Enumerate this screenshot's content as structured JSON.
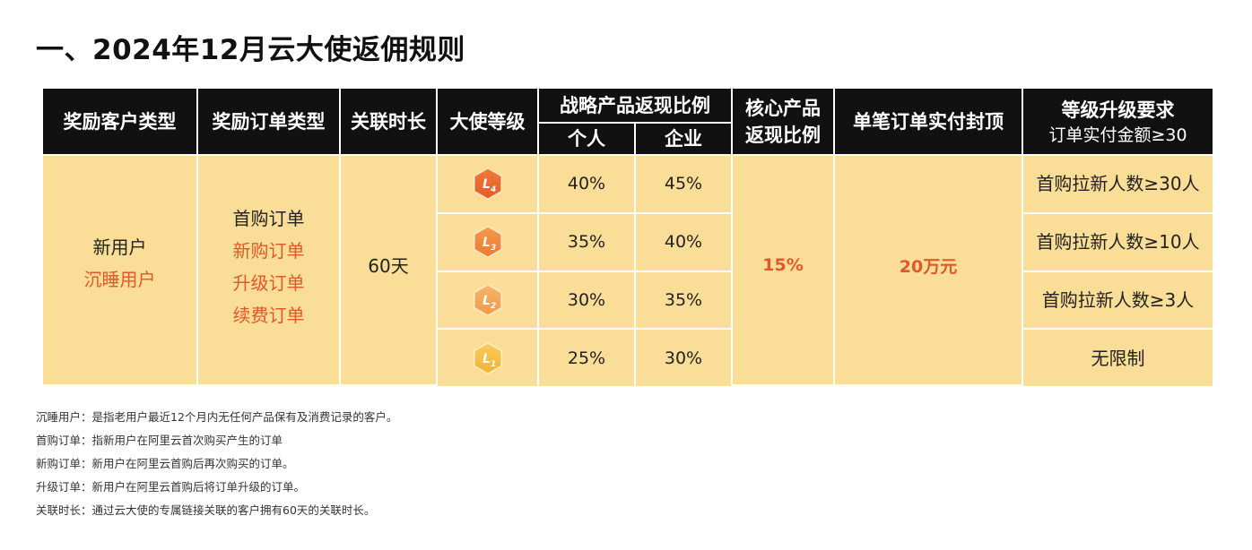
{
  "title": "一、2024年12月云大使返佣规则",
  "table": {
    "header": {
      "customer_type": "奖励客户类型",
      "order_type": "奖励订单类型",
      "duration": "关联时长",
      "level": "大使等级",
      "strategic": {
        "label": "战略产品返现比例",
        "personal": "个人",
        "enterprise": "企业"
      },
      "core": [
        "核心产品",
        "返现比例"
      ],
      "cap": "单笔订单实付封顶",
      "upgrade": {
        "label": "等级升级要求",
        "sub": "订单实付金额≥30"
      }
    },
    "customer_types": [
      "新用户",
      "沉睡用户"
    ],
    "order_types": [
      "首购订单",
      "新购订单",
      "升级订单",
      "续费订单"
    ],
    "duration": "60天",
    "rows": [
      {
        "badge": {
          "letter": "L",
          "num": "4"
        },
        "personal": "40%",
        "enterprise": "45%",
        "upgrade": "首购拉新人数≥30人"
      },
      {
        "badge": {
          "letter": "L",
          "num": "3"
        },
        "personal": "35%",
        "enterprise": "40%",
        "upgrade": "首购拉新人数≥10人"
      },
      {
        "badge": {
          "letter": "L",
          "num": "2"
        },
        "personal": "30%",
        "enterprise": "35%",
        "upgrade": "首购拉新人数≥3人"
      },
      {
        "badge": {
          "letter": "L",
          "num": "1"
        },
        "personal": "25%",
        "enterprise": "30%",
        "upgrade": "无限制"
      }
    ],
    "core": "15%",
    "cap": "20万元"
  },
  "notes": [
    "沉睡用户：是指老用户最近12个月内无任何产品保有及消费记录的客户。",
    "首购订单：指新用户在阿里云首次购买产生的订单",
    "新购订单：新用户在阿里云首购后再次购买的订单。",
    "升级订单：新用户在阿里云首购后将订单升级的订单。",
    "关联时长：通过云大使的专属链接关联的客户拥有60天的关联时长。"
  ]
}
